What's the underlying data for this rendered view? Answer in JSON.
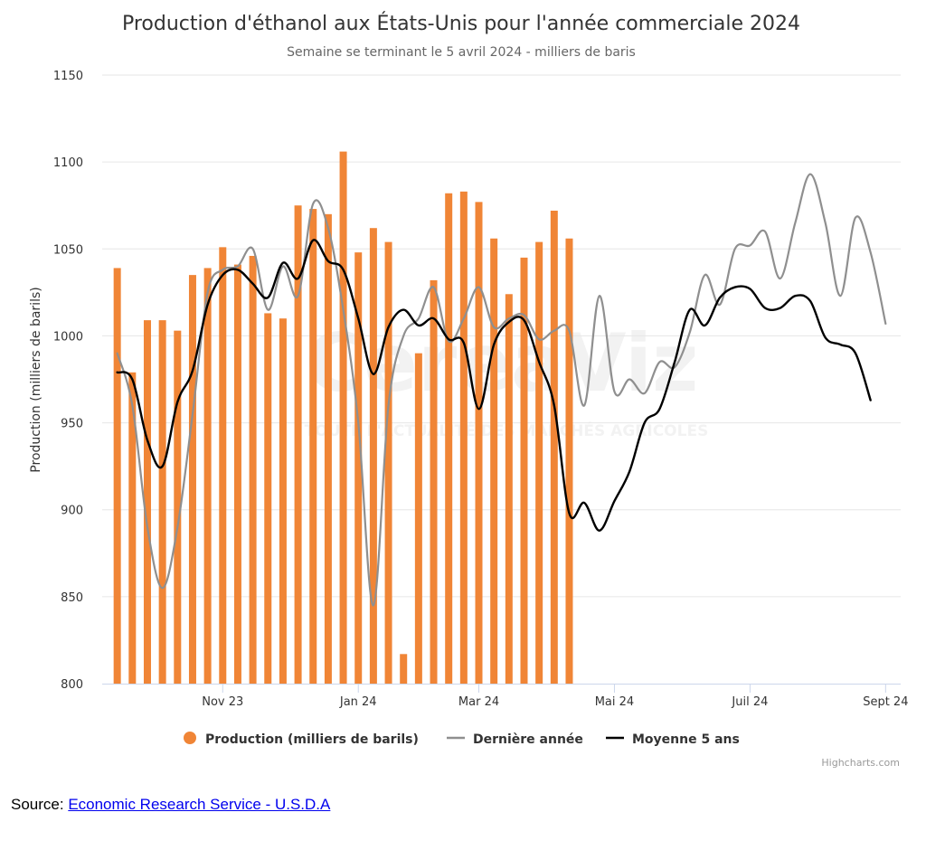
{
  "colors": {
    "production": "#f08536",
    "last_year": "#8f8f8f",
    "five_year_avg": "#000000",
    "grid": "#e6e6e6",
    "axis_text": "#333333",
    "link": "#0000ee"
  },
  "credits": "Highcharts.com",
  "source": {
    "prefix": "Source: ",
    "link_text": "Economic Research Service - U.S.D.A"
  },
  "watermark": {
    "logo_text": "CereaViz",
    "tagline": "TOUTE L'ACTUALITÉ DES MARCHÉS AGRICOLES"
  },
  "chart_data": {
    "type": "bar",
    "title": "Production d'éthanol aux États-Unis pour l'année commerciale 2024",
    "subtitle": "Semaine se terminant le 5 avril 2024 - milliers de baris",
    "ylabel": "Production (milliers de barils)",
    "xlabel": "",
    "ylim": [
      800,
      1150
    ],
    "y_ticks": [
      800,
      850,
      900,
      950,
      1000,
      1050,
      1100,
      1150
    ],
    "x_ticks": [
      {
        "week": 8,
        "label": "Nov 23"
      },
      {
        "week": 17,
        "label": "Jan 24"
      },
      {
        "week": 25,
        "label": "Mar 24"
      },
      {
        "week": 34,
        "label": "Mai 24"
      },
      {
        "week": 43,
        "label": "Juil 24"
      },
      {
        "week": 52,
        "label": "Sept 24"
      }
    ],
    "x_axis_weeks": [
      0,
      53
    ],
    "grid": true,
    "legend_position": "bottom-center",
    "series": [
      {
        "name": "Production (milliers de barils)",
        "type": "bar",
        "start_week": 1,
        "values": [
          1039,
          979,
          1009,
          1009,
          1003,
          1035,
          1039,
          1051,
          1041,
          1046,
          1013,
          1010,
          1075,
          1073,
          1070,
          1106,
          1048,
          1062,
          1054,
          817,
          990,
          1032,
          1082,
          1083,
          1077,
          1056,
          1024,
          1045,
          1054,
          1072,
          1056
        ]
      },
      {
        "name": "Dernière année",
        "type": "line",
        "start_week": 1,
        "values": [
          990,
          960,
          890,
          855,
          890,
          955,
          1025,
          1038,
          1040,
          1050,
          1015,
          1040,
          1023,
          1076,
          1062,
          1015,
          950,
          845,
          960,
          1000,
          1010,
          1028,
          997,
          1010,
          1028,
          1005,
          1010,
          1012,
          998,
          1003,
          1003,
          960,
          1023,
          968,
          975,
          967,
          985,
          982,
          1002,
          1035,
          1018,
          1050,
          1052,
          1060,
          1033,
          1065,
          1093,
          1065,
          1023,
          1068,
          1048,
          1007
        ]
      },
      {
        "name": "Moyenne 5 ans",
        "type": "line",
        "start_week": 1,
        "values": [
          979,
          975,
          940,
          925,
          962,
          980,
          1018,
          1035,
          1038,
          1030,
          1022,
          1042,
          1033,
          1055,
          1043,
          1038,
          1010,
          978,
          1005,
          1015,
          1006,
          1010,
          998,
          996,
          958,
          995,
          1008,
          1009,
          985,
          960,
          898,
          904,
          888,
          905,
          922,
          950,
          958,
          985,
          1015,
          1006,
          1022,
          1028,
          1027,
          1016,
          1016,
          1023,
          1020,
          999,
          995,
          990,
          963
        ]
      }
    ]
  }
}
